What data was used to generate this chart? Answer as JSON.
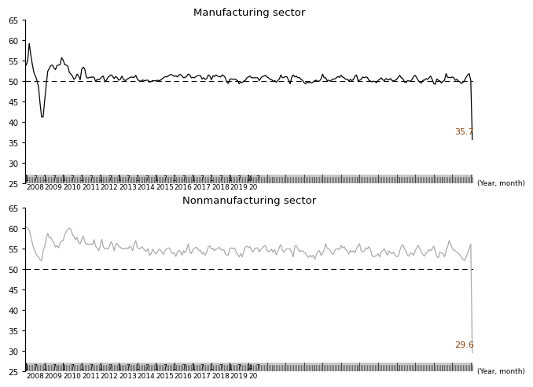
{
  "title_mfg": "Manufacturing sector",
  "title_nonmfg": "Nonmanufacturing sector",
  "ylim": [
    25,
    65
  ],
  "yticks": [
    25,
    30,
    35,
    40,
    45,
    50,
    55,
    60,
    65
  ],
  "reference_line": 50,
  "mfg_min_label": "35.7",
  "nonmfg_min_label": "29.6",
  "line_color_mfg": "#000000",
  "line_color_nonmfg": "#aaaaaa",
  "bar_area_color": "#c8c8c8",
  "bar_tick_color": "#555555",
  "year_label_color": "#000000",
  "month_label_color": "#000000",
  "annot_color": "#8B4513",
  "mfg_pmi": [
    53.9,
    55.0,
    59.2,
    56.4,
    54.1,
    52.1,
    51.2,
    50.2,
    48.6,
    44.6,
    41.2,
    41.2,
    45.3,
    49.0,
    52.4,
    53.1,
    53.8,
    53.9,
    53.2,
    52.8,
    53.8,
    53.9,
    54.0,
    55.7,
    55.1,
    54.0,
    53.9,
    53.6,
    52.1,
    51.7,
    51.2,
    50.4,
    50.8,
    51.7,
    51.2,
    50.3,
    52.9,
    53.4,
    52.9,
    50.9,
    50.7,
    50.9,
    50.9,
    51.0,
    50.9,
    49.9,
    50.4,
    50.3,
    50.6,
    51.0,
    51.2,
    49.8,
    50.2,
    50.9,
    51.2,
    51.5,
    51.2,
    50.6,
    51.1,
    50.8,
    50.2,
    50.4,
    51.2,
    50.5,
    50.1,
    50.3,
    50.6,
    50.8,
    51.0,
    50.9,
    50.9,
    51.4,
    50.5,
    50.1,
    49.9,
    50.2,
    50.2,
    50.1,
    50.2,
    50.2,
    49.7,
    49.9,
    50.1,
    50.1,
    50.0,
    50.2,
    50.1,
    50.2,
    50.5,
    50.8,
    51.1,
    51.0,
    51.2,
    51.5,
    51.6,
    51.4,
    51.1,
    51.3,
    51.0,
    51.5,
    51.6,
    51.2,
    50.8,
    50.9,
    51.2,
    51.7,
    51.5,
    50.8,
    50.9,
    50.8,
    51.1,
    51.3,
    51.4,
    51.3,
    50.5,
    50.8,
    50.4,
    50.6,
    51.5,
    51.2,
    50.3,
    51.3,
    51.1,
    51.5,
    51.2,
    51.1,
    51.0,
    51.5,
    51.3,
    50.8,
    49.7,
    49.4,
    50.5,
    50.5,
    50.4,
    50.5,
    50.3,
    50.1,
    49.3,
    49.8,
    49.6,
    50.0,
    50.2,
    50.8,
    51.0,
    51.2,
    50.8,
    50.8,
    50.8,
    50.8,
    50.8,
    50.1,
    50.7,
    51.1,
    51.2,
    51.4,
    51.0,
    50.8,
    50.4,
    50.4,
    49.9,
    50.1,
    49.7,
    50.1,
    50.5,
    51.5,
    50.8,
    50.9,
    51.1,
    51.0,
    50.2,
    49.3,
    50.9,
    51.5,
    51.0,
    51.2,
    50.8,
    50.9,
    50.4,
    50.2,
    49.6,
    49.3,
    49.8,
    49.6,
    49.7,
    49.5,
    49.8,
    50.1,
    50.2,
    49.9,
    50.0,
    50.5,
    51.7,
    50.8,
    50.8,
    50.1,
    50.2,
    49.9,
    50.3,
    50.5,
    50.5,
    50.8,
    51.1,
    50.9,
    51.4,
    51.0,
    50.8,
    50.4,
    50.5,
    50.0,
    50.4,
    50.1,
    50.4,
    51.2,
    51.5,
    50.1,
    50.2,
    50.4,
    51.0,
    50.8,
    51.0,
    50.9,
    50.2,
    50.0,
    49.8,
    50.0,
    49.8,
    49.6,
    50.2,
    50.4,
    50.8,
    50.3,
    50.1,
    50.6,
    50.4,
    50.3,
    50.6,
    50.1,
    50.0,
    50.2,
    50.4,
    50.9,
    51.4,
    50.8,
    50.6,
    49.8,
    49.6,
    50.1,
    50.0,
    50.0,
    50.4,
    51.1,
    51.4,
    50.8,
    50.1,
    49.7,
    49.5,
    50.2,
    50.2,
    50.6,
    50.4,
    50.8,
    51.2,
    50.4,
    49.4,
    49.2,
    50.5,
    50.2,
    50.0,
    49.5,
    49.9,
    50.2,
    51.8,
    50.9,
    50.9,
    50.8,
    51.0,
    50.8,
    50.2,
    50.4,
    50.0,
    49.8,
    49.4,
    49.7,
    50.2,
    50.9,
    51.5,
    51.8,
    50.2,
    35.7
  ],
  "nonmfg_pmi": [
    60.4,
    60.0,
    59.5,
    58.0,
    56.4,
    55.0,
    54.2,
    53.3,
    53.0,
    52.3,
    52.0,
    54.6,
    55.6,
    57.4,
    58.8,
    57.7,
    57.8,
    57.0,
    56.4,
    55.4,
    55.7,
    55.2,
    56.4,
    56.9,
    57.0,
    58.5,
    59.2,
    59.8,
    60.1,
    59.7,
    58.4,
    58.0,
    57.2,
    57.8,
    56.4,
    56.2,
    57.3,
    58.1,
    56.7,
    56.1,
    56.2,
    56.0,
    56.2,
    56.0,
    57.2,
    55.6,
    55.2,
    54.5,
    55.7,
    57.3,
    55.4,
    55.0,
    55.2,
    54.9,
    55.6,
    56.7,
    56.1,
    54.5,
    56.1,
    56.3,
    55.5,
    55.4,
    55.0,
    55.1,
    55.0,
    55.2,
    55.0,
    55.6,
    55.4,
    54.5,
    56.2,
    57.0,
    55.3,
    55.0,
    55.1,
    55.5,
    55.0,
    54.5,
    54.4,
    55.0,
    53.4,
    53.8,
    54.9,
    54.2,
    53.7,
    54.2,
    54.9,
    54.7,
    54.1,
    53.6,
    54.6,
    55.0,
    55.2,
    55.1,
    54.2,
    53.8,
    54.0,
    53.1,
    54.2,
    54.6,
    54.2,
    53.4,
    54.5,
    54.0,
    54.8,
    56.2,
    54.3,
    53.8,
    54.8,
    55.1,
    55.4,
    55.1,
    54.5,
    54.6,
    53.7,
    54.1,
    53.4,
    54.2,
    55.4,
    55.7,
    54.9,
    55.1,
    54.5,
    54.9,
    55.0,
    55.4,
    54.8,
    54.6,
    54.8,
    53.8,
    53.4,
    53.5,
    55.1,
    55.2,
    55.0,
    55.2,
    54.2,
    53.6,
    53.0,
    53.8,
    53.0,
    54.3,
    55.4,
    55.6,
    55.3,
    55.5,
    54.6,
    54.2,
    55.0,
    55.2,
    55.2,
    54.2,
    54.8,
    55.2,
    55.6,
    55.8,
    54.6,
    54.3,
    54.5,
    54.9,
    54.1,
    54.8,
    53.5,
    54.2,
    55.4,
    56.0,
    54.7,
    54.1,
    54.8,
    55.0,
    54.9,
    55.0,
    54.0,
    53.0,
    55.6,
    55.8,
    55.0,
    54.3,
    54.5,
    54.5,
    54.1,
    54.0,
    53.2,
    52.9,
    53.4,
    53.0,
    53.4,
    52.4,
    53.6,
    54.2,
    54.6,
    53.4,
    53.8,
    54.8,
    56.2,
    55.1,
    55.0,
    54.5,
    53.8,
    53.6,
    54.6,
    55.0,
    55.0,
    54.8,
    55.8,
    55.2,
    55.5,
    54.8,
    54.5,
    53.7,
    54.6,
    54.2,
    54.5,
    54.0,
    55.0,
    55.8,
    56.2,
    54.5,
    54.2,
    54.5,
    55.2,
    55.0,
    55.5,
    54.8,
    53.4,
    53.0,
    53.2,
    53.4,
    53.8,
    53.0,
    54.2,
    54.5,
    55.0,
    54.2,
    53.4,
    54.5,
    54.0,
    53.8,
    54.2,
    53.4,
    53.0,
    53.2,
    54.5,
    55.6,
    56.0,
    55.0,
    54.5,
    53.4,
    53.2,
    54.0,
    53.8,
    53.4,
    54.5,
    55.2,
    55.8,
    55.0,
    54.2,
    53.5,
    53.2,
    54.0,
    54.2,
    54.8,
    54.5,
    55.0,
    55.6,
    54.5,
    53.1,
    52.8,
    54.2,
    54.0,
    53.8,
    53.0,
    54.5,
    55.5,
    57.0,
    56.0,
    55.2,
    54.6,
    54.5,
    54.2,
    53.8,
    53.5,
    52.8,
    52.4,
    52.1,
    52.9,
    54.0,
    55.0,
    56.2,
    29.6
  ],
  "years": [
    2008,
    2009,
    2010,
    2011,
    2012,
    2013,
    2014,
    2015,
    2016,
    2017,
    2018,
    2019,
    2020
  ]
}
